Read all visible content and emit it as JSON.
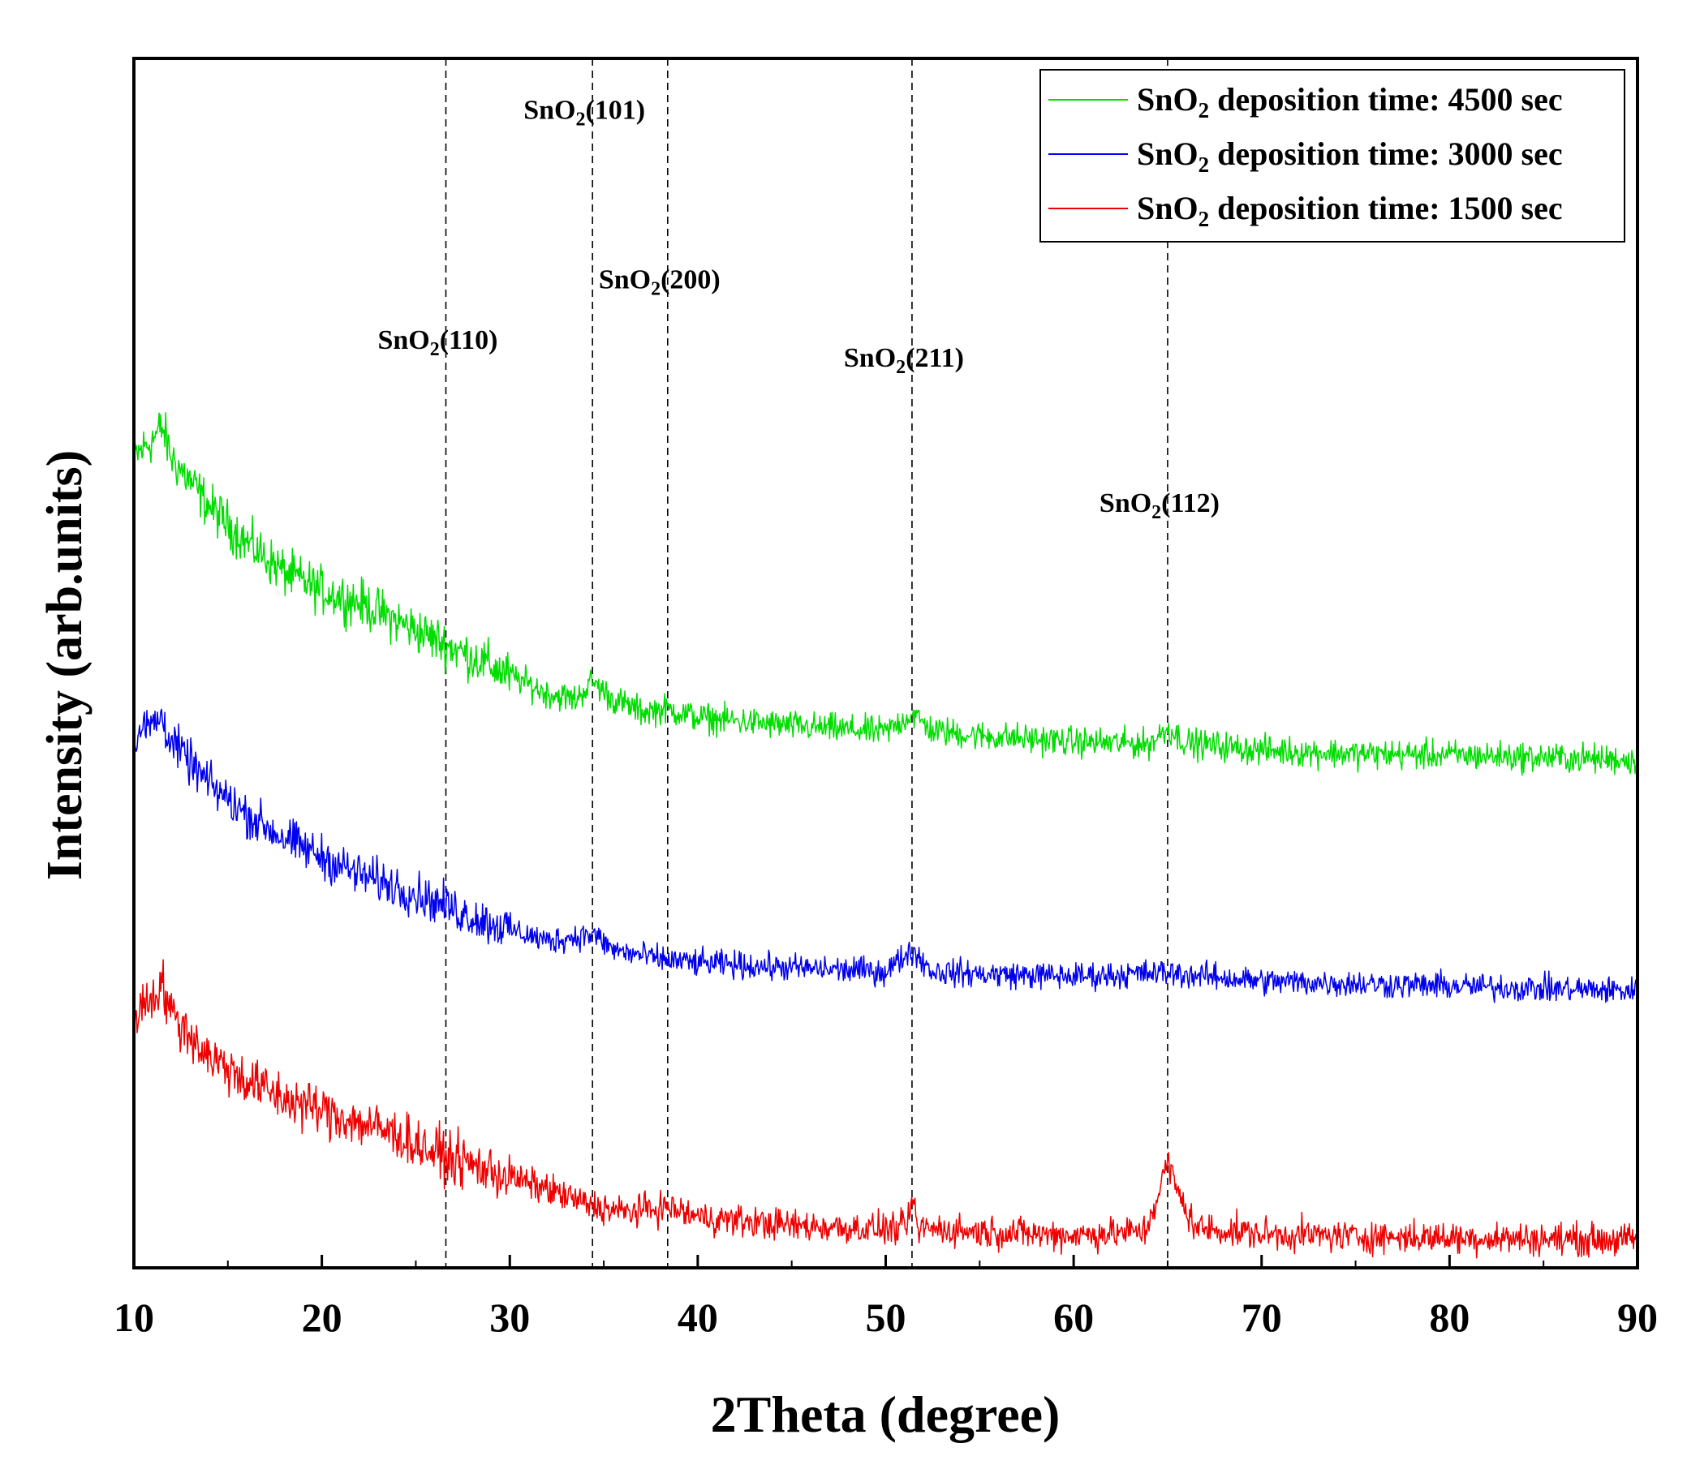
{
  "chart_data": {
    "type": "line",
    "title": "",
    "xlabel": "2Theta (degree)",
    "ylabel": "Intensity (arb.units)",
    "xlim": [
      10,
      90
    ],
    "ylim": [
      0,
      100
    ],
    "xticks": [
      10,
      20,
      30,
      40,
      50,
      60,
      70,
      80,
      90
    ],
    "yticks_shown": false,
    "legend_placement": "top-right",
    "reference_lines": [
      {
        "x": 26.6,
        "compound": "SnO",
        "subscript": "2",
        "plane": "(110)",
        "label_y": 76
      },
      {
        "x": 34.4,
        "compound": "SnO",
        "subscript": "2",
        "plane": "(101)",
        "label_y": 95
      },
      {
        "x": 38.4,
        "compound": "SnO",
        "subscript": "2",
        "plane": "(200)",
        "label_y": 81
      },
      {
        "x": 51.4,
        "compound": "SnO",
        "subscript": "2",
        "plane": "(211)",
        "label_y": 74.5
      },
      {
        "x": 65.0,
        "compound": "SnO",
        "subscript": "2",
        "plane": "(112)",
        "label_y": 62.5
      }
    ],
    "series": [
      {
        "name_prefix": "SnO",
        "name_sub": "2",
        "name_suffix": " deposition time: 4500 sec",
        "color": "#00dd00",
        "noise": 1.2,
        "points": [
          [
            10,
            67
          ],
          [
            11,
            68.5
          ],
          [
            11.5,
            69.5
          ],
          [
            12,
            67
          ],
          [
            14,
            63
          ],
          [
            16,
            60
          ],
          [
            18,
            57.5
          ],
          [
            20,
            56
          ],
          [
            22,
            55
          ],
          [
            24,
            53.5
          ],
          [
            26,
            52
          ],
          [
            28,
            50.5
          ],
          [
            30,
            49
          ],
          [
            32,
            47.5
          ],
          [
            33.5,
            47
          ],
          [
            34.4,
            48.5
          ],
          [
            35.5,
            47
          ],
          [
            37,
            46
          ],
          [
            38.4,
            46.2
          ],
          [
            40,
            45.5
          ],
          [
            45,
            44.8
          ],
          [
            50,
            44.3
          ],
          [
            51.4,
            45.8
          ],
          [
            52.5,
            44.4
          ],
          [
            55,
            44
          ],
          [
            60,
            43.5
          ],
          [
            64,
            43.3
          ],
          [
            65,
            44.6
          ],
          [
            66,
            43.4
          ],
          [
            70,
            42.8
          ],
          [
            75,
            42.5
          ],
          [
            80,
            42.4
          ],
          [
            85,
            42.2
          ],
          [
            90,
            42
          ]
        ]
      },
      {
        "name_prefix": "SnO",
        "name_sub": "2",
        "name_suffix": " deposition time: 3000 sec",
        "color": "#0000ee",
        "noise": 1.1,
        "points": [
          [
            10,
            44
          ],
          [
            11,
            45
          ],
          [
            11.5,
            45.5
          ],
          [
            12,
            43.5
          ],
          [
            14,
            40
          ],
          [
            16,
            37.5
          ],
          [
            18,
            35.5
          ],
          [
            20,
            34
          ],
          [
            22,
            32.5
          ],
          [
            24,
            31.5
          ],
          [
            26,
            30.3
          ],
          [
            28,
            29
          ],
          [
            30,
            28
          ],
          [
            32,
            27
          ],
          [
            34.4,
            27.6
          ],
          [
            35.5,
            26.3
          ],
          [
            38,
            25.5
          ],
          [
            40,
            25.2
          ],
          [
            45,
            24.8
          ],
          [
            50,
            24.5
          ],
          [
            51.4,
            26.3
          ],
          [
            52.5,
            24.5
          ],
          [
            55,
            24.3
          ],
          [
            60,
            24.1
          ],
          [
            65,
            24.4
          ],
          [
            70,
            23.7
          ],
          [
            75,
            23.5
          ],
          [
            80,
            23.3
          ],
          [
            85,
            23.1
          ],
          [
            90,
            22.9
          ]
        ]
      },
      {
        "name_prefix": "SnO",
        "name_sub": "2",
        "name_suffix": " deposition time: 1500 sec",
        "color": "#ee0000",
        "noise": 1.3,
        "points": [
          [
            10,
            21
          ],
          [
            11,
            22.5
          ],
          [
            11.5,
            23.5
          ],
          [
            12,
            21
          ],
          [
            14,
            17.5
          ],
          [
            16,
            15.5
          ],
          [
            18,
            14
          ],
          [
            20,
            13
          ],
          [
            22,
            12
          ],
          [
            24,
            11
          ],
          [
            26,
            9.5
          ],
          [
            28,
            8.5
          ],
          [
            30,
            7.5
          ],
          [
            32,
            6.5
          ],
          [
            34,
            5.3
          ],
          [
            36,
            4.6
          ],
          [
            38.4,
            5
          ],
          [
            40,
            4.2
          ],
          [
            45,
            3.5
          ],
          [
            50,
            3.2
          ],
          [
            51.1,
            3.3
          ],
          [
            51.4,
            5.6
          ],
          [
            51.7,
            3.3
          ],
          [
            55,
            3
          ],
          [
            60,
            2.7
          ],
          [
            63.8,
            3
          ],
          [
            64.5,
            6
          ],
          [
            65,
            8.8
          ],
          [
            65.6,
            6
          ],
          [
            66.5,
            3.3
          ],
          [
            70,
            2.8
          ],
          [
            75,
            2.6
          ],
          [
            80,
            2.5
          ],
          [
            85,
            2.4
          ],
          [
            90,
            2.3
          ]
        ]
      }
    ]
  }
}
